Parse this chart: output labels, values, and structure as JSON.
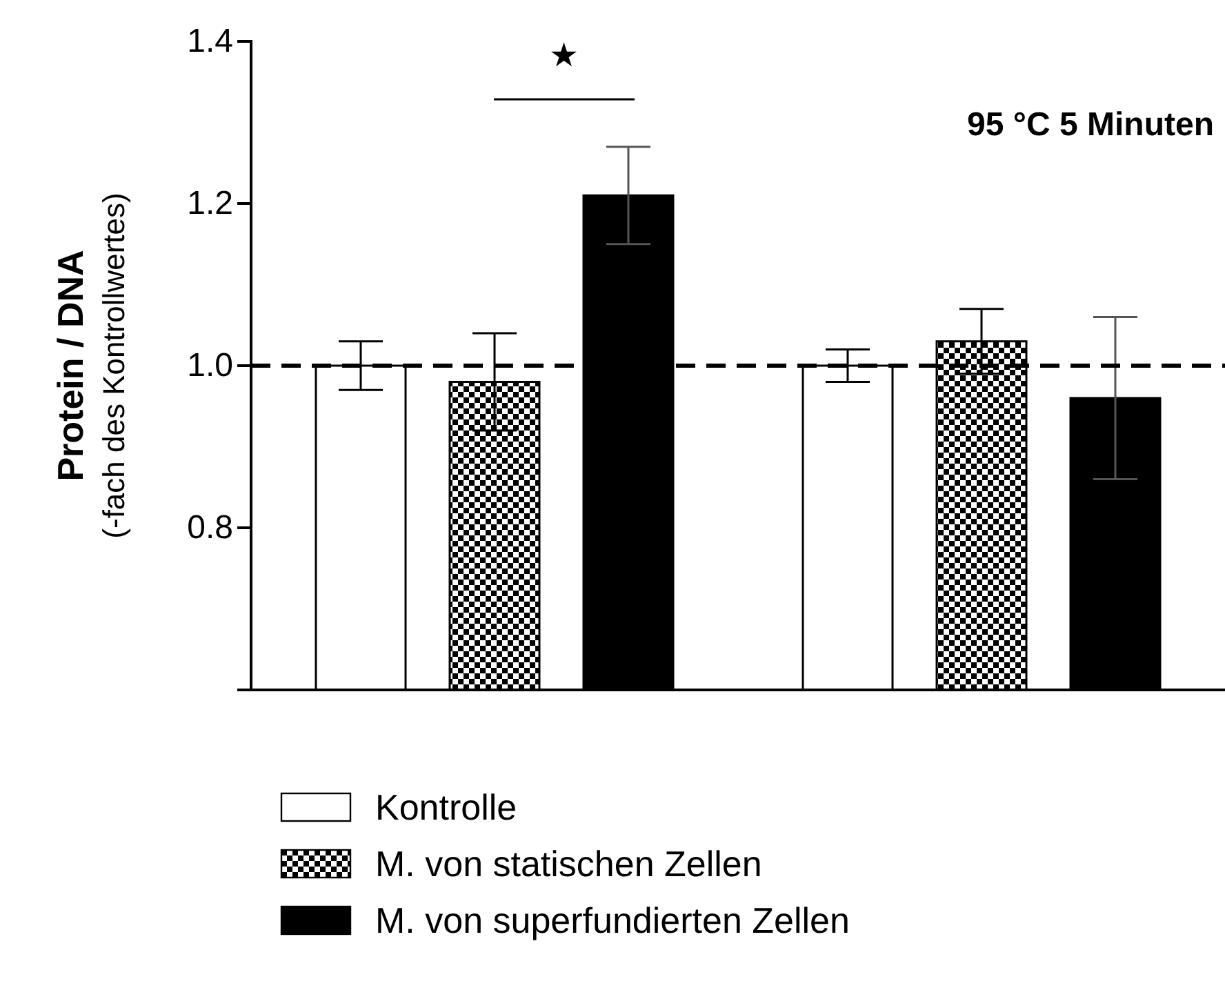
{
  "chart_data": {
    "type": "bar",
    "categories": [
      null,
      null
    ],
    "series": [
      {
        "name": "Kontrolle",
        "color": "#ffffff",
        "values": [
          1.0,
          1.0
        ],
        "errors": [
          0.03,
          0.02
        ]
      },
      {
        "name": "M. von statischen Zellen",
        "color": "#000000",
        "values": [
          0.98,
          1.03
        ],
        "errors": [
          0.06,
          0.04
        ]
      },
      {
        "name": "M. von superfundierten Zellen",
        "color": "#000000",
        "values": [
          1.21,
          0.96
        ],
        "errors": [
          0.06,
          0.1
        ]
      }
    ],
    "ylabel": "Protein / DNA\n(-fach des Kontrollwertes)",
    "ylim": [
      0.6,
      1.4
    ],
    "yticks": [
      {
        "value": 0.8,
        "label": "0.8"
      },
      {
        "value": 1.0,
        "label": "1.0"
      },
      {
        "value": 1.2,
        "label": "1.2"
      },
      {
        "value": 1.4,
        "label": "1.4"
      }
    ],
    "ref_lines": [
      {
        "axis": "y",
        "value": 1.0,
        "line_style": "dashed",
        "color": "#000000"
      }
    ],
    "annotations": [
      "★",
      "95 °C 5 Minuten"
    ],
    "legend": "bottom",
    "grid": false
  }
}
